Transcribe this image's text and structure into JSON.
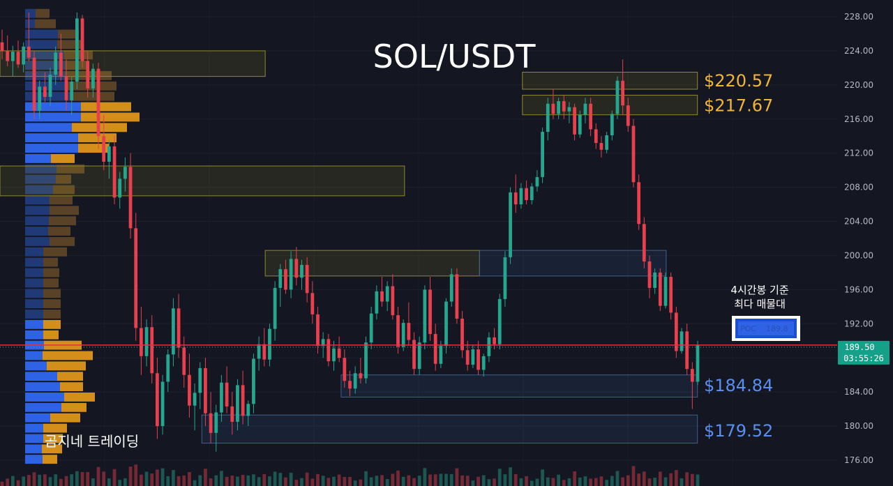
{
  "chart_data": {
    "type": "candlestick",
    "title": "SOL/USDT",
    "watermark": "곰지네 트레이딩",
    "y_axis": {
      "min": 174.5,
      "max": 229.5,
      "ticks": [
        "176.00",
        "180.00",
        "184.00",
        "188.00",
        "192.00",
        "196.00",
        "200.00",
        "204.00",
        "208.00",
        "212.00",
        "216.00",
        "220.00",
        "224.00",
        "228.00"
      ]
    },
    "current_price": {
      "value": 189.5,
      "label": "189.50",
      "countdown": "03:55:26"
    },
    "poc": {
      "label": "POC",
      "value": "189.8",
      "note_line1": "4시간봉 기준",
      "note_line2": "최다 매물대"
    },
    "levels": [
      {
        "label": "$220.57",
        "value": 220.57,
        "color": "#f2b53a"
      },
      {
        "label": "$217.67",
        "value": 217.67,
        "color": "#f2b53a"
      },
      {
        "label": "$184.84",
        "value": 184.84,
        "color": "#5a8ef0"
      },
      {
        "label": "$179.52",
        "value": 179.52,
        "color": "#5a8ef0"
      }
    ],
    "zones": [
      {
        "x0": 0.0,
        "x1": 0.297,
        "top": 224.0,
        "bottom": 221.0,
        "kind": "supply"
      },
      {
        "x0": 0.0,
        "x1": 0.453,
        "top": 210.5,
        "bottom": 207.0,
        "kind": "supply"
      },
      {
        "x0": 0.585,
        "x1": 0.781,
        "top": 221.5,
        "bottom": 219.5,
        "kind": "supply"
      },
      {
        "x0": 0.585,
        "x1": 0.781,
        "top": 218.8,
        "bottom": 216.5,
        "kind": "supply"
      },
      {
        "x0": 0.297,
        "x1": 0.537,
        "top": 200.6,
        "bottom": 197.6,
        "kind": "supply"
      },
      {
        "x0": 0.537,
        "x1": 0.746,
        "top": 200.6,
        "bottom": 197.6,
        "kind": "demand"
      },
      {
        "x0": 0.382,
        "x1": 0.781,
        "top": 186.0,
        "bottom": 183.4,
        "kind": "demand"
      },
      {
        "x0": 0.226,
        "x1": 0.781,
        "top": 181.3,
        "bottom": 178.0,
        "kind": "demand"
      }
    ],
    "volume_profile": {
      "price_low": 175.5,
      "price_high": 229.0,
      "rows_buy": [
        15,
        14,
        47,
        46,
        56,
        57,
        57,
        59,
        64,
        80,
        80,
        67,
        76,
        76,
        37,
        45,
        44,
        40,
        35,
        35,
        34,
        33,
        35,
        26,
        26,
        26,
        26,
        26,
        26,
        26,
        26,
        26,
        27,
        25,
        31,
        46,
        50,
        56,
        52,
        36,
        26,
        26,
        24,
        25
      ],
      "rows_sell": [
        20,
        30,
        30,
        34,
        41,
        35,
        67,
        72,
        64,
        72,
        84,
        79,
        55,
        44,
        34,
        40,
        22,
        31,
        33,
        42,
        39,
        32,
        36,
        34,
        21,
        23,
        22,
        25,
        25,
        25,
        25,
        22,
        54,
        72,
        56,
        37,
        33,
        44,
        36,
        43,
        34,
        28,
        29,
        21
      ]
    },
    "candles": [
      [
        225.0,
        226.5,
        223.0,
        224.0
      ],
      [
        224.0,
        225.8,
        222.2,
        222.8
      ],
      [
        222.8,
        224.6,
        221.0,
        223.9
      ],
      [
        223.9,
        225.2,
        222.0,
        222.4
      ],
      [
        222.4,
        225.0,
        221.5,
        224.5
      ],
      [
        224.5,
        228.5,
        222.8,
        223.2
      ],
      [
        223.2,
        224.0,
        216.0,
        217.0
      ],
      [
        217.0,
        220.5,
        216.0,
        219.8
      ],
      [
        219.8,
        221.5,
        218.0,
        218.6
      ],
      [
        218.6,
        222.0,
        217.5,
        221.2
      ],
      [
        221.2,
        224.5,
        220.0,
        223.8
      ],
      [
        223.8,
        226.0,
        220.5,
        221.0
      ],
      [
        221.0,
        223.0,
        217.0,
        218.2
      ],
      [
        218.2,
        221.0,
        216.5,
        220.4
      ],
      [
        220.4,
        228.5,
        219.5,
        227.8
      ],
      [
        227.8,
        228.2,
        222.0,
        222.8
      ],
      [
        222.8,
        224.0,
        218.5,
        219.6
      ],
      [
        219.6,
        222.5,
        218.5,
        221.9
      ],
      [
        221.9,
        222.6,
        212.5,
        214.0
      ],
      [
        214.0,
        216.5,
        210.0,
        211.0
      ],
      [
        211.0,
        213.5,
        209.0,
        212.8
      ],
      [
        212.8,
        214.0,
        206.0,
        206.8
      ],
      [
        206.8,
        209.8,
        205.5,
        209.0
      ],
      [
        209.0,
        211.5,
        207.5,
        210.4
      ],
      [
        210.4,
        212.0,
        202.0,
        203.2
      ],
      [
        203.2,
        205.0,
        190.0,
        191.5
      ],
      [
        191.5,
        194.0,
        186.0,
        188.2
      ],
      [
        188.2,
        192.5,
        187.0,
        191.6
      ],
      [
        191.6,
        193.0,
        185.0,
        186.2
      ],
      [
        186.2,
        188.0,
        178.5,
        180.0
      ],
      [
        180.0,
        186.0,
        179.0,
        185.2
      ],
      [
        185.2,
        189.0,
        184.0,
        188.4
      ],
      [
        188.4,
        195.0,
        187.0,
        193.8
      ],
      [
        193.8,
        195.5,
        188.0,
        189.2
      ],
      [
        189.2,
        190.5,
        184.5,
        186.0
      ],
      [
        186.0,
        188.5,
        181.0,
        182.4
      ],
      [
        182.4,
        185.0,
        179.5,
        183.9
      ],
      [
        183.9,
        187.5,
        182.0,
        186.8
      ],
      [
        186.8,
        188.0,
        180.0,
        181.5
      ],
      [
        181.5,
        184.0,
        178.0,
        179.2
      ],
      [
        179.2,
        182.5,
        177.0,
        181.6
      ],
      [
        181.6,
        186.0,
        180.5,
        185.1
      ],
      [
        185.1,
        187.0,
        181.5,
        182.3
      ],
      [
        182.3,
        184.0,
        179.0,
        180.5
      ],
      [
        180.5,
        185.5,
        179.5,
        184.8
      ],
      [
        184.8,
        186.5,
        180.2,
        181.2
      ],
      [
        181.2,
        183.0,
        180.0,
        182.6
      ],
      [
        182.6,
        188.5,
        181.5,
        187.9
      ],
      [
        187.9,
        190.5,
        186.5,
        189.6
      ],
      [
        189.6,
        191.5,
        187.0,
        187.8
      ],
      [
        187.8,
        192.0,
        187.0,
        191.4
      ],
      [
        191.4,
        197.0,
        190.0,
        196.2
      ],
      [
        196.2,
        199.0,
        194.0,
        198.4
      ],
      [
        198.4,
        199.5,
        195.5,
        196.0
      ],
      [
        196.0,
        200.5,
        195.0,
        199.6
      ],
      [
        199.6,
        201.0,
        196.5,
        197.4
      ],
      [
        197.4,
        199.5,
        196.0,
        198.9
      ],
      [
        198.9,
        199.8,
        194.5,
        195.6
      ],
      [
        195.6,
        197.0,
        192.0,
        193.1
      ],
      [
        193.1,
        194.0,
        188.5,
        189.4
      ],
      [
        189.4,
        191.0,
        188.0,
        190.2
      ],
      [
        190.2,
        190.8,
        187.0,
        187.6
      ],
      [
        187.6,
        190.0,
        186.5,
        189.1
      ],
      [
        189.1,
        190.5,
        187.5,
        188.0
      ],
      [
        188.0,
        189.0,
        184.5,
        185.3
      ],
      [
        185.3,
        186.5,
        183.5,
        184.4
      ],
      [
        184.4,
        187.0,
        183.8,
        186.2
      ],
      [
        186.2,
        188.0,
        185.0,
        185.6
      ],
      [
        185.6,
        190.5,
        185.0,
        189.8
      ],
      [
        189.8,
        194.0,
        189.0,
        193.2
      ],
      [
        193.2,
        196.5,
        192.5,
        195.8
      ],
      [
        195.8,
        197.5,
        194.0,
        194.6
      ],
      [
        194.6,
        197.0,
        193.5,
        196.4
      ],
      [
        196.4,
        197.8,
        192.5,
        193.0
      ],
      [
        193.0,
        194.0,
        188.5,
        189.3
      ],
      [
        189.3,
        192.5,
        188.8,
        192.1
      ],
      [
        192.1,
        194.5,
        189.5,
        190.1
      ],
      [
        190.1,
        191.0,
        186.0,
        186.7
      ],
      [
        186.7,
        190.5,
        186.0,
        189.8
      ],
      [
        189.8,
        196.5,
        189.0,
        196.0
      ],
      [
        196.0,
        197.5,
        190.0,
        190.8
      ],
      [
        190.8,
        192.0,
        186.5,
        187.3
      ],
      [
        187.3,
        190.0,
        186.8,
        189.4
      ],
      [
        189.4,
        195.0,
        188.5,
        194.6
      ],
      [
        194.6,
        198.5,
        194.0,
        197.8
      ],
      [
        197.8,
        198.5,
        192.0,
        192.6
      ],
      [
        192.6,
        193.5,
        188.0,
        188.9
      ],
      [
        188.9,
        190.0,
        186.5,
        187.2
      ],
      [
        187.2,
        189.5,
        186.8,
        189.0
      ],
      [
        189.0,
        190.0,
        186.0,
        186.6
      ],
      [
        186.6,
        188.5,
        185.8,
        188.2
      ],
      [
        188.2,
        191.0,
        187.5,
        190.4
      ],
      [
        190.4,
        191.5,
        189.0,
        189.6
      ],
      [
        189.6,
        195.5,
        189.0,
        194.9
      ],
      [
        194.9,
        200.5,
        194.0,
        199.8
      ],
      [
        199.8,
        208.0,
        199.0,
        207.4
      ],
      [
        207.4,
        209.5,
        205.0,
        206.0
      ],
      [
        206.0,
        208.5,
        205.5,
        207.9
      ],
      [
        207.9,
        208.8,
        206.0,
        206.5
      ],
      [
        206.5,
        208.5,
        206.0,
        208.1
      ],
      [
        208.1,
        210.0,
        207.5,
        209.2
      ],
      [
        209.2,
        215.0,
        208.5,
        214.5
      ],
      [
        214.5,
        218.5,
        213.5,
        217.8
      ],
      [
        217.8,
        219.5,
        216.0,
        216.6
      ],
      [
        216.6,
        218.5,
        216.0,
        218.1
      ],
      [
        218.1,
        218.8,
        216.0,
        216.9
      ],
      [
        216.9,
        218.0,
        215.5,
        217.4
      ],
      [
        217.4,
        217.8,
        213.5,
        214.2
      ],
      [
        214.2,
        217.0,
        213.8,
        216.5
      ],
      [
        216.5,
        218.5,
        215.5,
        217.8
      ],
      [
        217.8,
        218.5,
        214.0,
        214.8
      ],
      [
        214.8,
        215.5,
        212.5,
        213.2
      ],
      [
        213.2,
        214.0,
        211.5,
        212.4
      ],
      [
        212.4,
        214.5,
        212.0,
        214.1
      ],
      [
        214.1,
        217.0,
        213.5,
        216.6
      ],
      [
        216.6,
        221.0,
        216.0,
        220.5
      ],
      [
        220.5,
        223.0,
        216.5,
        217.6
      ],
      [
        217.6,
        218.5,
        214.5,
        215.2
      ],
      [
        215.2,
        216.0,
        208.0,
        208.6
      ],
      [
        208.6,
        209.5,
        203.0,
        203.7
      ],
      [
        203.7,
        204.5,
        198.5,
        199.3
      ],
      [
        199.3,
        200.0,
        195.0,
        196.2
      ],
      [
        196.2,
        198.5,
        195.5,
        198.0
      ],
      [
        198.0,
        198.5,
        193.5,
        194.1
      ],
      [
        194.1,
        198.0,
        193.8,
        197.5
      ],
      [
        197.5,
        198.0,
        192.5,
        193.3
      ],
      [
        193.3,
        194.0,
        188.0,
        188.8
      ],
      [
        188.8,
        191.5,
        188.5,
        191.1
      ],
      [
        191.1,
        192.0,
        186.0,
        186.7
      ],
      [
        186.7,
        187.5,
        182.0,
        185.2
      ],
      [
        185.2,
        190.0,
        184.8,
        189.5
      ]
    ]
  }
}
